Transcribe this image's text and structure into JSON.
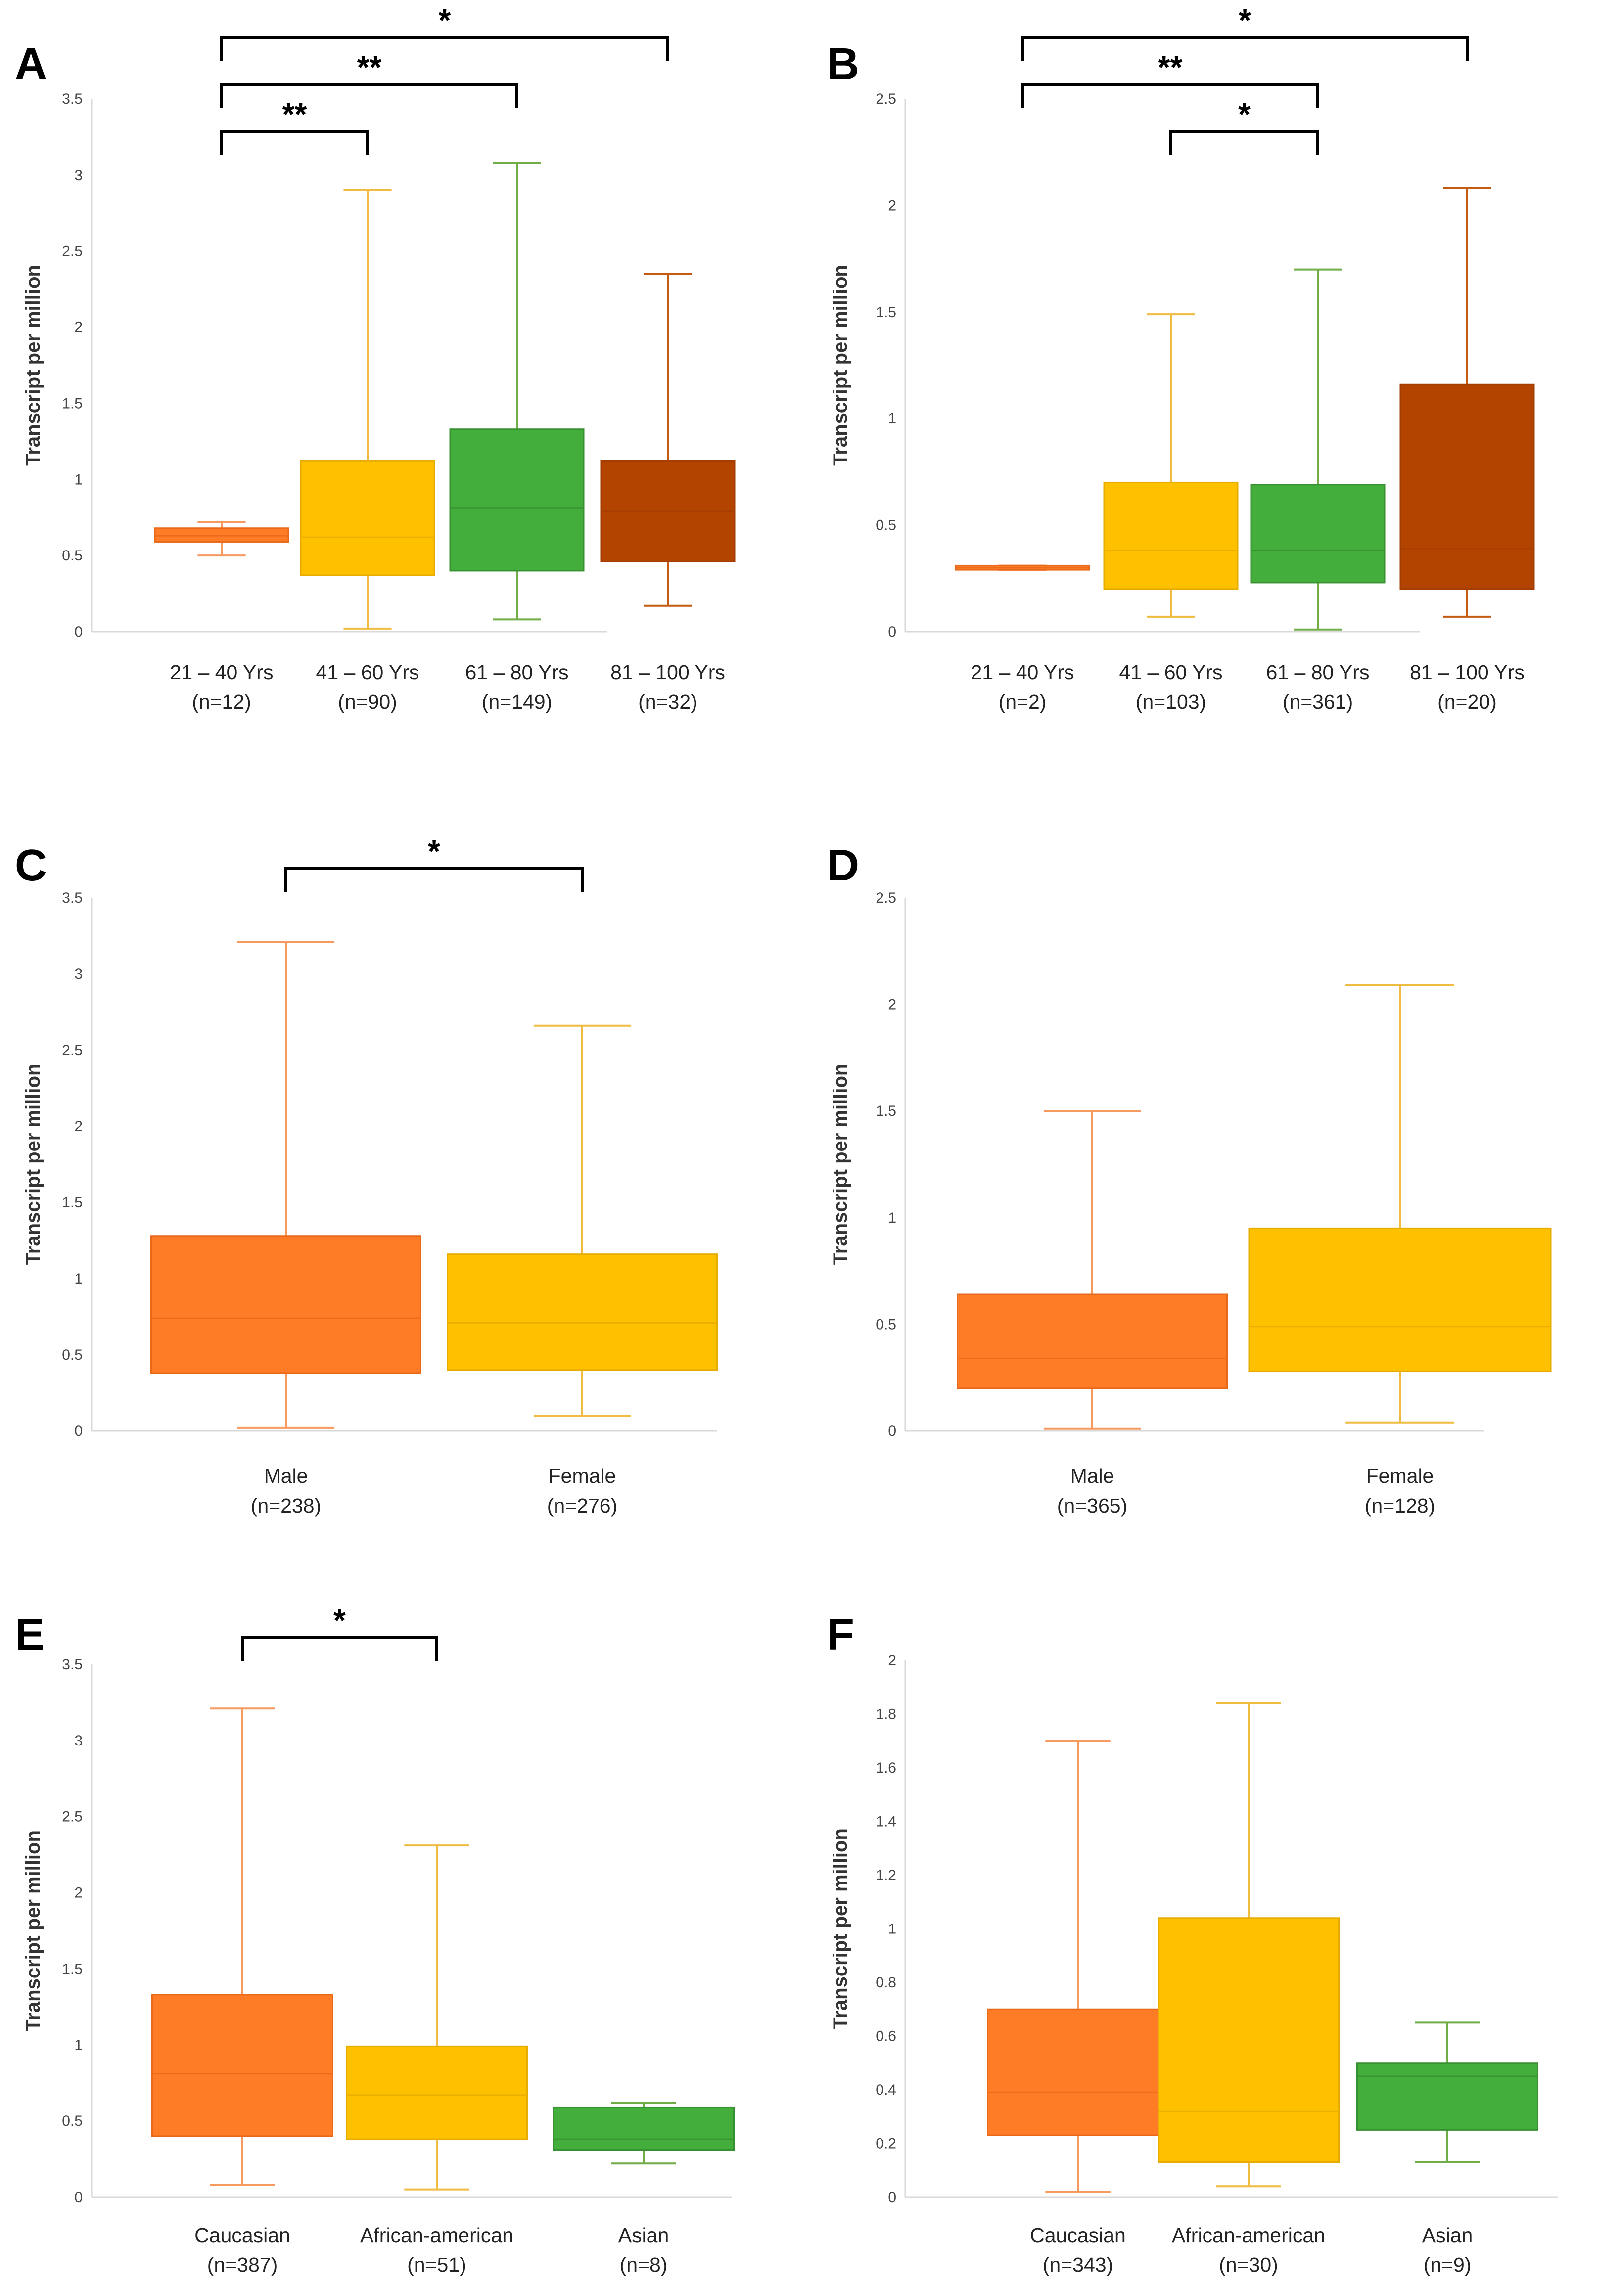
{
  "colors": {
    "orange": "#FF7C26",
    "orange_dark": "#E8691A",
    "gold": "#FFC000",
    "gold_dark": "#E6AC00",
    "green": "#44AE3C",
    "green_dark": "#389131",
    "rust": "#B34400",
    "rust_dark": "#A33D00",
    "whisker_orange": "#F79A60",
    "whisker_gold": "#EFBB40",
    "whisker_green": "#70AD47",
    "whisker_rust": "#C55A11",
    "axis": "#D9D9D9",
    "bracket": "#000000"
  },
  "chart_data": [
    {
      "id": "A",
      "type": "box",
      "ylabel": "Transcript per million",
      "ylim": [
        0,
        3.5
      ],
      "yticks": [
        "0",
        "0.5",
        "1",
        "1.5",
        "2",
        "2.5",
        "3",
        "3.5"
      ],
      "groups": [
        {
          "label": "21 – 40 Yrs",
          "n": "(n=12)",
          "color": "orange",
          "whisker": "whisker_orange",
          "min": 0.5,
          "q1": 0.59,
          "median": 0.63,
          "q3": 0.68,
          "max": 0.72
        },
        {
          "label": "41 – 60 Yrs",
          "n": "(n=90)",
          "color": "gold",
          "whisker": "whisker_gold",
          "min": 0.02,
          "q1": 0.37,
          "median": 0.62,
          "q3": 1.12,
          "max": 2.9
        },
        {
          "label": "61 – 80 Yrs",
          "n": "(n=149)",
          "color": "green",
          "whisker": "whisker_green",
          "min": 0.08,
          "q1": 0.4,
          "median": 0.81,
          "q3": 1.33,
          "max": 3.08
        },
        {
          "label": "81 – 100 Yrs",
          "n": "(n=32)",
          "color": "rust",
          "whisker": "whisker_rust",
          "min": 0.17,
          "q1": 0.46,
          "median": 0.79,
          "q3": 1.12,
          "max": 2.35
        }
      ],
      "significance": [
        {
          "from": 0,
          "to": 1,
          "label": "**",
          "level": 0
        },
        {
          "from": 0,
          "to": 2,
          "label": "**",
          "level": 1
        },
        {
          "from": 0,
          "to": 3,
          "label": "*",
          "level": 2
        }
      ]
    },
    {
      "id": "B",
      "type": "box",
      "ylabel": "Transcript per million",
      "ylim": [
        0,
        2.5
      ],
      "yticks": [
        "0",
        "0.5",
        "1",
        "1.5",
        "2",
        "2.5"
      ],
      "groups": [
        {
          "label": "21 – 40 Yrs",
          "n": "(n=2)",
          "color": "orange",
          "whisker": "whisker_orange",
          "min": 0.29,
          "q1": 0.29,
          "median": 0.3,
          "q3": 0.31,
          "max": 0.31
        },
        {
          "label": "41 – 60 Yrs",
          "n": "(n=103)",
          "color": "gold",
          "whisker": "whisker_gold",
          "min": 0.07,
          "q1": 0.2,
          "median": 0.38,
          "q3": 0.7,
          "max": 1.49
        },
        {
          "label": "61 – 80 Yrs",
          "n": "(n=361)",
          "color": "green",
          "whisker": "whisker_green",
          "min": 0.01,
          "q1": 0.23,
          "median": 0.38,
          "q3": 0.69,
          "max": 1.7
        },
        {
          "label": "81 – 100 Yrs",
          "n": "(n=20)",
          "color": "rust",
          "whisker": "whisker_rust",
          "min": 0.07,
          "q1": 0.2,
          "median": 0.39,
          "q3": 1.16,
          "max": 2.08
        }
      ],
      "significance": [
        {
          "from": 1,
          "to": 2,
          "label": "*",
          "level": 0
        },
        {
          "from": 0,
          "to": 2,
          "label": "**",
          "level": 1
        },
        {
          "from": 0,
          "to": 3,
          "label": "*",
          "level": 2
        }
      ]
    },
    {
      "id": "C",
      "type": "box",
      "ylabel": "Transcript per million",
      "ylim": [
        0,
        3.5
      ],
      "yticks": [
        "0",
        "0.5",
        "1",
        "1.5",
        "2",
        "2.5",
        "3",
        "3.5"
      ],
      "groups": [
        {
          "label": "Male",
          "n": "(n=238)",
          "color": "orange",
          "whisker": "whisker_orange",
          "min": 0.02,
          "q1": 0.38,
          "median": 0.74,
          "q3": 1.28,
          "max": 3.21
        },
        {
          "label": "Female",
          "n": "(n=276)",
          "color": "gold",
          "whisker": "whisker_gold",
          "min": 0.1,
          "q1": 0.4,
          "median": 0.71,
          "q3": 1.16,
          "max": 2.66
        }
      ],
      "significance": [
        {
          "from": 0,
          "to": 1,
          "label": "*",
          "level": 0
        }
      ]
    },
    {
      "id": "D",
      "type": "box",
      "ylabel": "Transcript per million",
      "ylim": [
        0,
        2.5
      ],
      "yticks": [
        "0",
        "0.5",
        "1",
        "1.5",
        "2",
        "2.5"
      ],
      "groups": [
        {
          "label": "Male",
          "n": "(n=365)",
          "color": "orange",
          "whisker": "whisker_orange",
          "min": 0.01,
          "q1": 0.2,
          "median": 0.34,
          "q3": 0.64,
          "max": 1.5
        },
        {
          "label": "Female",
          "n": "(n=128)",
          "color": "gold",
          "whisker": "whisker_gold",
          "min": 0.04,
          "q1": 0.28,
          "median": 0.49,
          "q3": 0.95,
          "max": 2.09
        }
      ],
      "significance": []
    },
    {
      "id": "E",
      "type": "box",
      "ylabel": "Transcript per million",
      "ylim": [
        0,
        3.5
      ],
      "yticks": [
        "0",
        "0.5",
        "1",
        "1.5",
        "2",
        "2.5",
        "3",
        "3.5"
      ],
      "groups": [
        {
          "label": "Caucasian",
          "n": "(n=387)",
          "color": "orange",
          "whisker": "whisker_orange",
          "min": 0.08,
          "q1": 0.4,
          "median": 0.81,
          "q3": 1.33,
          "max": 3.21
        },
        {
          "label": "African-american",
          "n": "(n=51)",
          "color": "gold",
          "whisker": "whisker_gold",
          "min": 0.05,
          "q1": 0.38,
          "median": 0.67,
          "q3": 0.99,
          "max": 2.31
        },
        {
          "label": "Asian",
          "n": "(n=8)",
          "color": "green",
          "whisker": "whisker_green",
          "min": 0.22,
          "q1": 0.31,
          "median": 0.38,
          "q3": 0.59,
          "max": 0.62
        }
      ],
      "significance": [
        {
          "from": 0,
          "to": 1,
          "label": "*",
          "level": 0
        }
      ]
    },
    {
      "id": "F",
      "type": "box",
      "ylabel": "Transcript per million",
      "ylim": [
        0,
        2
      ],
      "yticks": [
        "0",
        "0.2",
        "0.4",
        "0.6",
        "0.8",
        "1",
        "1.2",
        "1.4",
        "1.6",
        "1.8",
        "2"
      ],
      "groups": [
        {
          "label": "Caucasian",
          "n": "(n=343)",
          "color": "orange",
          "whisker": "whisker_orange",
          "min": 0.02,
          "q1": 0.23,
          "median": 0.39,
          "q3": 0.7,
          "max": 1.7
        },
        {
          "label": "African-american",
          "n": "(n=30)",
          "color": "gold",
          "whisker": "whisker_gold",
          "min": 0.04,
          "q1": 0.13,
          "median": 0.32,
          "q3": 1.04,
          "max": 1.84
        },
        {
          "label": "Asian",
          "n": "(n=9)",
          "color": "green",
          "whisker": "whisker_green",
          "min": 0.13,
          "q1": 0.25,
          "median": 0.45,
          "q3": 0.5,
          "max": 0.65
        }
      ],
      "significance": []
    }
  ]
}
